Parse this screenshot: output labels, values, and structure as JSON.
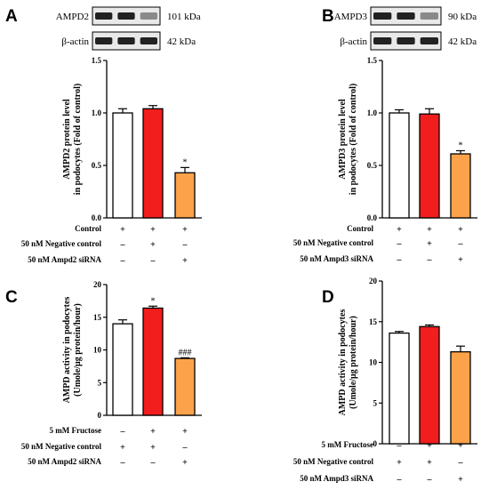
{
  "colors": {
    "white_bar": "#ffffff",
    "red_bar": "#f21d1d",
    "orange_bar": "#fba24a",
    "axis": "#000000"
  },
  "chart_data": [
    {
      "panel": "A",
      "type": "bar",
      "ylabel": [
        "AMPD2 protein level",
        "in podocytes (Fold of control)"
      ],
      "ylim": [
        0,
        1.5
      ],
      "yticks": [
        "0.0",
        "0.5",
        "1.0",
        "1.5"
      ],
      "values": [
        1.0,
        1.04,
        0.43
      ],
      "errors": [
        0.04,
        0.03,
        0.05
      ],
      "significance": [
        "",
        "",
        "*"
      ],
      "western_blot": [
        {
          "protein": "AMPD2",
          "size": "101 kDa"
        },
        {
          "protein": "β-actin",
          "size": "42 kDa"
        }
      ],
      "conditions": [
        {
          "label": "Control",
          "marks": [
            "+",
            "+",
            "+"
          ]
        },
        {
          "label": "50 nM Negative control",
          "marks": [
            "–",
            "+",
            "–"
          ]
        },
        {
          "label": "50 nM Ampd2 siRNA",
          "marks": [
            "–",
            "–",
            "+"
          ]
        }
      ]
    },
    {
      "panel": "B",
      "type": "bar",
      "ylabel": [
        "AMPD3 protein level",
        "in podocytes (Fold of control)"
      ],
      "ylim": [
        0,
        1.5
      ],
      "yticks": [
        "0.0",
        "0.5",
        "1.0",
        "1.5"
      ],
      "values": [
        1.0,
        0.99,
        0.61
      ],
      "errors": [
        0.03,
        0.05,
        0.03
      ],
      "significance": [
        "",
        "",
        "*"
      ],
      "western_blot": [
        {
          "protein": "AMPD3",
          "size": "90 kDa"
        },
        {
          "protein": "β-actin",
          "size": "42 kDa"
        }
      ],
      "conditions": [
        {
          "label": "Control",
          "marks": [
            "+",
            "+",
            "+"
          ]
        },
        {
          "label": "50 nM Negative control",
          "marks": [
            "–",
            "+",
            "–"
          ]
        },
        {
          "label": "50 nM Ampd3 siRNA",
          "marks": [
            "–",
            "–",
            "+"
          ]
        }
      ]
    },
    {
      "panel": "C",
      "type": "bar",
      "ylabel": [
        "AMPD activity in podocytes",
        "(Umole/μg protein/hour)"
      ],
      "ylim": [
        0,
        20
      ],
      "yticks": [
        "0",
        "5",
        "10",
        "15",
        "20"
      ],
      "values": [
        14.0,
        16.4,
        8.7
      ],
      "errors": [
        0.6,
        0.3,
        0.1
      ],
      "significance": [
        "",
        "*",
        "###"
      ],
      "conditions": [
        {
          "label": "5 mM Fructose",
          "marks": [
            "–",
            "+",
            "+"
          ]
        },
        {
          "label": "50 nM Negative control",
          "marks": [
            "+",
            "+",
            "–"
          ]
        },
        {
          "label": "50 nM Ampd2 siRNA",
          "marks": [
            "–",
            "–",
            "+"
          ]
        }
      ]
    },
    {
      "panel": "D",
      "type": "bar",
      "ylabel": [
        "AMPD activity in podocytes",
        "(Umole/μg protein/hour)"
      ],
      "ylim": [
        0,
        20
      ],
      "yticks": [
        "0",
        "5",
        "10",
        "15",
        "20"
      ],
      "values": [
        13.6,
        14.4,
        11.3
      ],
      "errors": [
        0.2,
        0.2,
        0.7
      ],
      "significance": [
        "",
        "",
        ""
      ],
      "conditions": [
        {
          "label": "5 mM Fructose",
          "marks": [
            "–",
            "+",
            "+"
          ]
        },
        {
          "label": "50 nM Negative control",
          "marks": [
            "+",
            "+",
            "–"
          ]
        },
        {
          "label": "50 nM Ampd3 siRNA",
          "marks": [
            "–",
            "–",
            "+"
          ]
        }
      ]
    }
  ]
}
